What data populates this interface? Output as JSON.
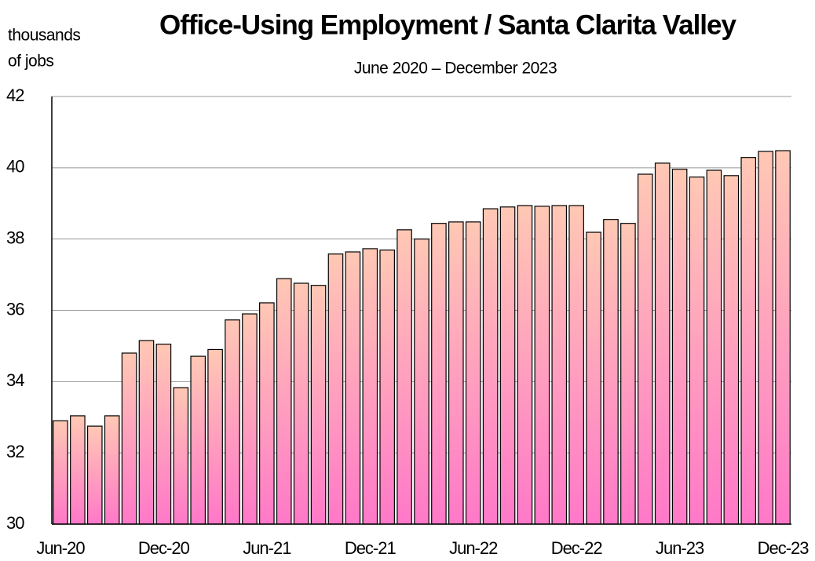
{
  "chart_data": {
    "type": "bar",
    "title": "Office-Using Employment / Santa Clarita Valley",
    "subtitle": "June 2020 – December 2023",
    "y_label_lines": [
      "thousands",
      "of jobs"
    ],
    "categories": [
      "Jun-20",
      null,
      null,
      null,
      null,
      null,
      "Dec-20",
      null,
      null,
      null,
      null,
      null,
      "Jun-21",
      null,
      null,
      null,
      null,
      null,
      "Dec-21",
      null,
      null,
      null,
      null,
      null,
      "Jun-22",
      null,
      null,
      null,
      null,
      null,
      "Dec-22",
      null,
      null,
      null,
      null,
      null,
      "Jun-23",
      null,
      null,
      null,
      null,
      null,
      "Dec-23"
    ],
    "values": [
      32.9,
      33.04,
      32.75,
      33.04,
      34.8,
      35.15,
      35.05,
      33.83,
      34.71,
      34.9,
      35.73,
      35.9,
      36.21,
      36.89,
      36.76,
      36.7,
      37.58,
      37.64,
      37.73,
      37.69,
      38.26,
      38.0,
      38.44,
      38.48,
      38.48,
      38.85,
      38.9,
      38.94,
      38.92,
      38.94,
      38.94,
      38.19,
      38.55,
      38.44,
      39.82,
      40.13,
      39.96,
      39.74,
      39.93,
      39.78,
      40.29,
      40.46,
      40.48
    ],
    "color": [
      "#ffc8b4",
      "#ff78c8"
    ],
    "ylim": [
      30,
      42
    ],
    "yticks": [
      30,
      32,
      34,
      36,
      38,
      40,
      42
    ],
    "grid": true
  }
}
